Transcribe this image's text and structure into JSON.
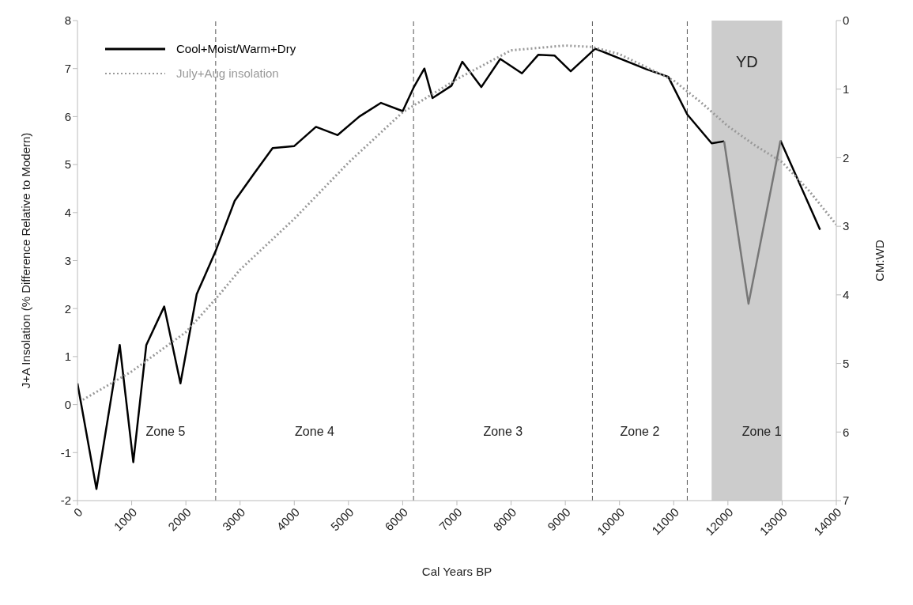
{
  "chart_data": {
    "type": "line",
    "xlabel": "Cal Years BP",
    "ylabel": "J+A Insolation (% Difference Relative to Modern)",
    "y2label": "CM:WD",
    "xlim": [
      0,
      14000
    ],
    "xticks": [
      0,
      1000,
      2000,
      3000,
      4000,
      5000,
      6000,
      7000,
      8000,
      9000,
      10000,
      11000,
      12000,
      13000,
      14000
    ],
    "ylim": [
      -2,
      8
    ],
    "yticks": [
      -2,
      -1,
      0,
      1,
      2,
      3,
      4,
      5,
      6,
      7,
      8
    ],
    "y2lim": [
      7,
      0
    ],
    "y2ticks": [
      0,
      1,
      2,
      3,
      4,
      5,
      6,
      7
    ],
    "series": [
      {
        "name": "Cool+Moist/Warm+Dry",
        "color": "#000000",
        "axis": "y2",
        "line_style": "solid",
        "x": [
          0,
          350,
          780,
          1030,
          1270,
          1600,
          1900,
          2200,
          2550,
          2900,
          3250,
          3600,
          4000,
          4400,
          4800,
          5200,
          5600,
          6000,
          6200,
          6400,
          6550,
          6900,
          7100,
          7450,
          7800,
          8200,
          8500,
          8800,
          9100,
          9550,
          10500,
          10900,
          11250,
          11700,
          11930,
          12380,
          12970,
          13700
        ],
        "values": [
          5.29,
          6.83,
          4.73,
          6.44,
          4.73,
          4.17,
          5.29,
          3.99,
          3.36,
          2.63,
          2.24,
          1.86,
          1.83,
          1.55,
          1.67,
          1.4,
          1.2,
          1.32,
          0.98,
          0.7,
          1.13,
          0.95,
          0.6,
          0.97,
          0.56,
          0.77,
          0.5,
          0.51,
          0.74,
          0.41,
          0.71,
          0.82,
          1.37,
          1.79,
          1.76,
          null,
          1.75,
          3.05
        ]
      },
      {
        "color": "#777777",
        "axis": "y2",
        "line_style": "solid",
        "x": [
          11930,
          12380,
          12970
        ],
        "values": [
          1.76,
          4.13,
          1.75
        ]
      },
      {
        "name": "July+Aug insolation",
        "color": "#999999",
        "line_style": "dotted",
        "x": [
          100,
          1000,
          2000,
          2550,
          3000,
          4000,
          5000,
          6000,
          7000,
          8000,
          9000,
          9500,
          10000,
          11000,
          11500,
          12000,
          12500,
          13000,
          13500,
          14000
        ],
        "values": [
          0.1,
          0.69,
          1.51,
          2.2,
          2.81,
          3.87,
          5.04,
          6.09,
          6.78,
          7.38,
          7.48,
          7.45,
          7.3,
          6.75,
          6.3,
          5.8,
          5.4,
          5.05,
          4.45,
          3.75
        ]
      }
    ],
    "ref_lines": [
      {
        "axis": "x",
        "value": 2550,
        "color": "#555555",
        "line_style": "dashed"
      },
      {
        "axis": "x",
        "value": 6200,
        "color": "#555555",
        "line_style": "dashed"
      },
      {
        "axis": "x",
        "value": 9500,
        "color": "#555555",
        "line_style": "dashed"
      },
      {
        "axis": "x",
        "value": 11250,
        "color": "#555555",
        "line_style": "dashed"
      }
    ],
    "bands": [
      {
        "axis": "x",
        "from": 11700,
        "to": 13000,
        "label": "YD",
        "color": "#cccccc"
      }
    ],
    "annotations": [
      "Zone 5",
      "Zone 4",
      "Zone 3",
      "Zone 2",
      "Zone 1"
    ],
    "legend": "top left",
    "grid": false,
    "marker": "none"
  }
}
